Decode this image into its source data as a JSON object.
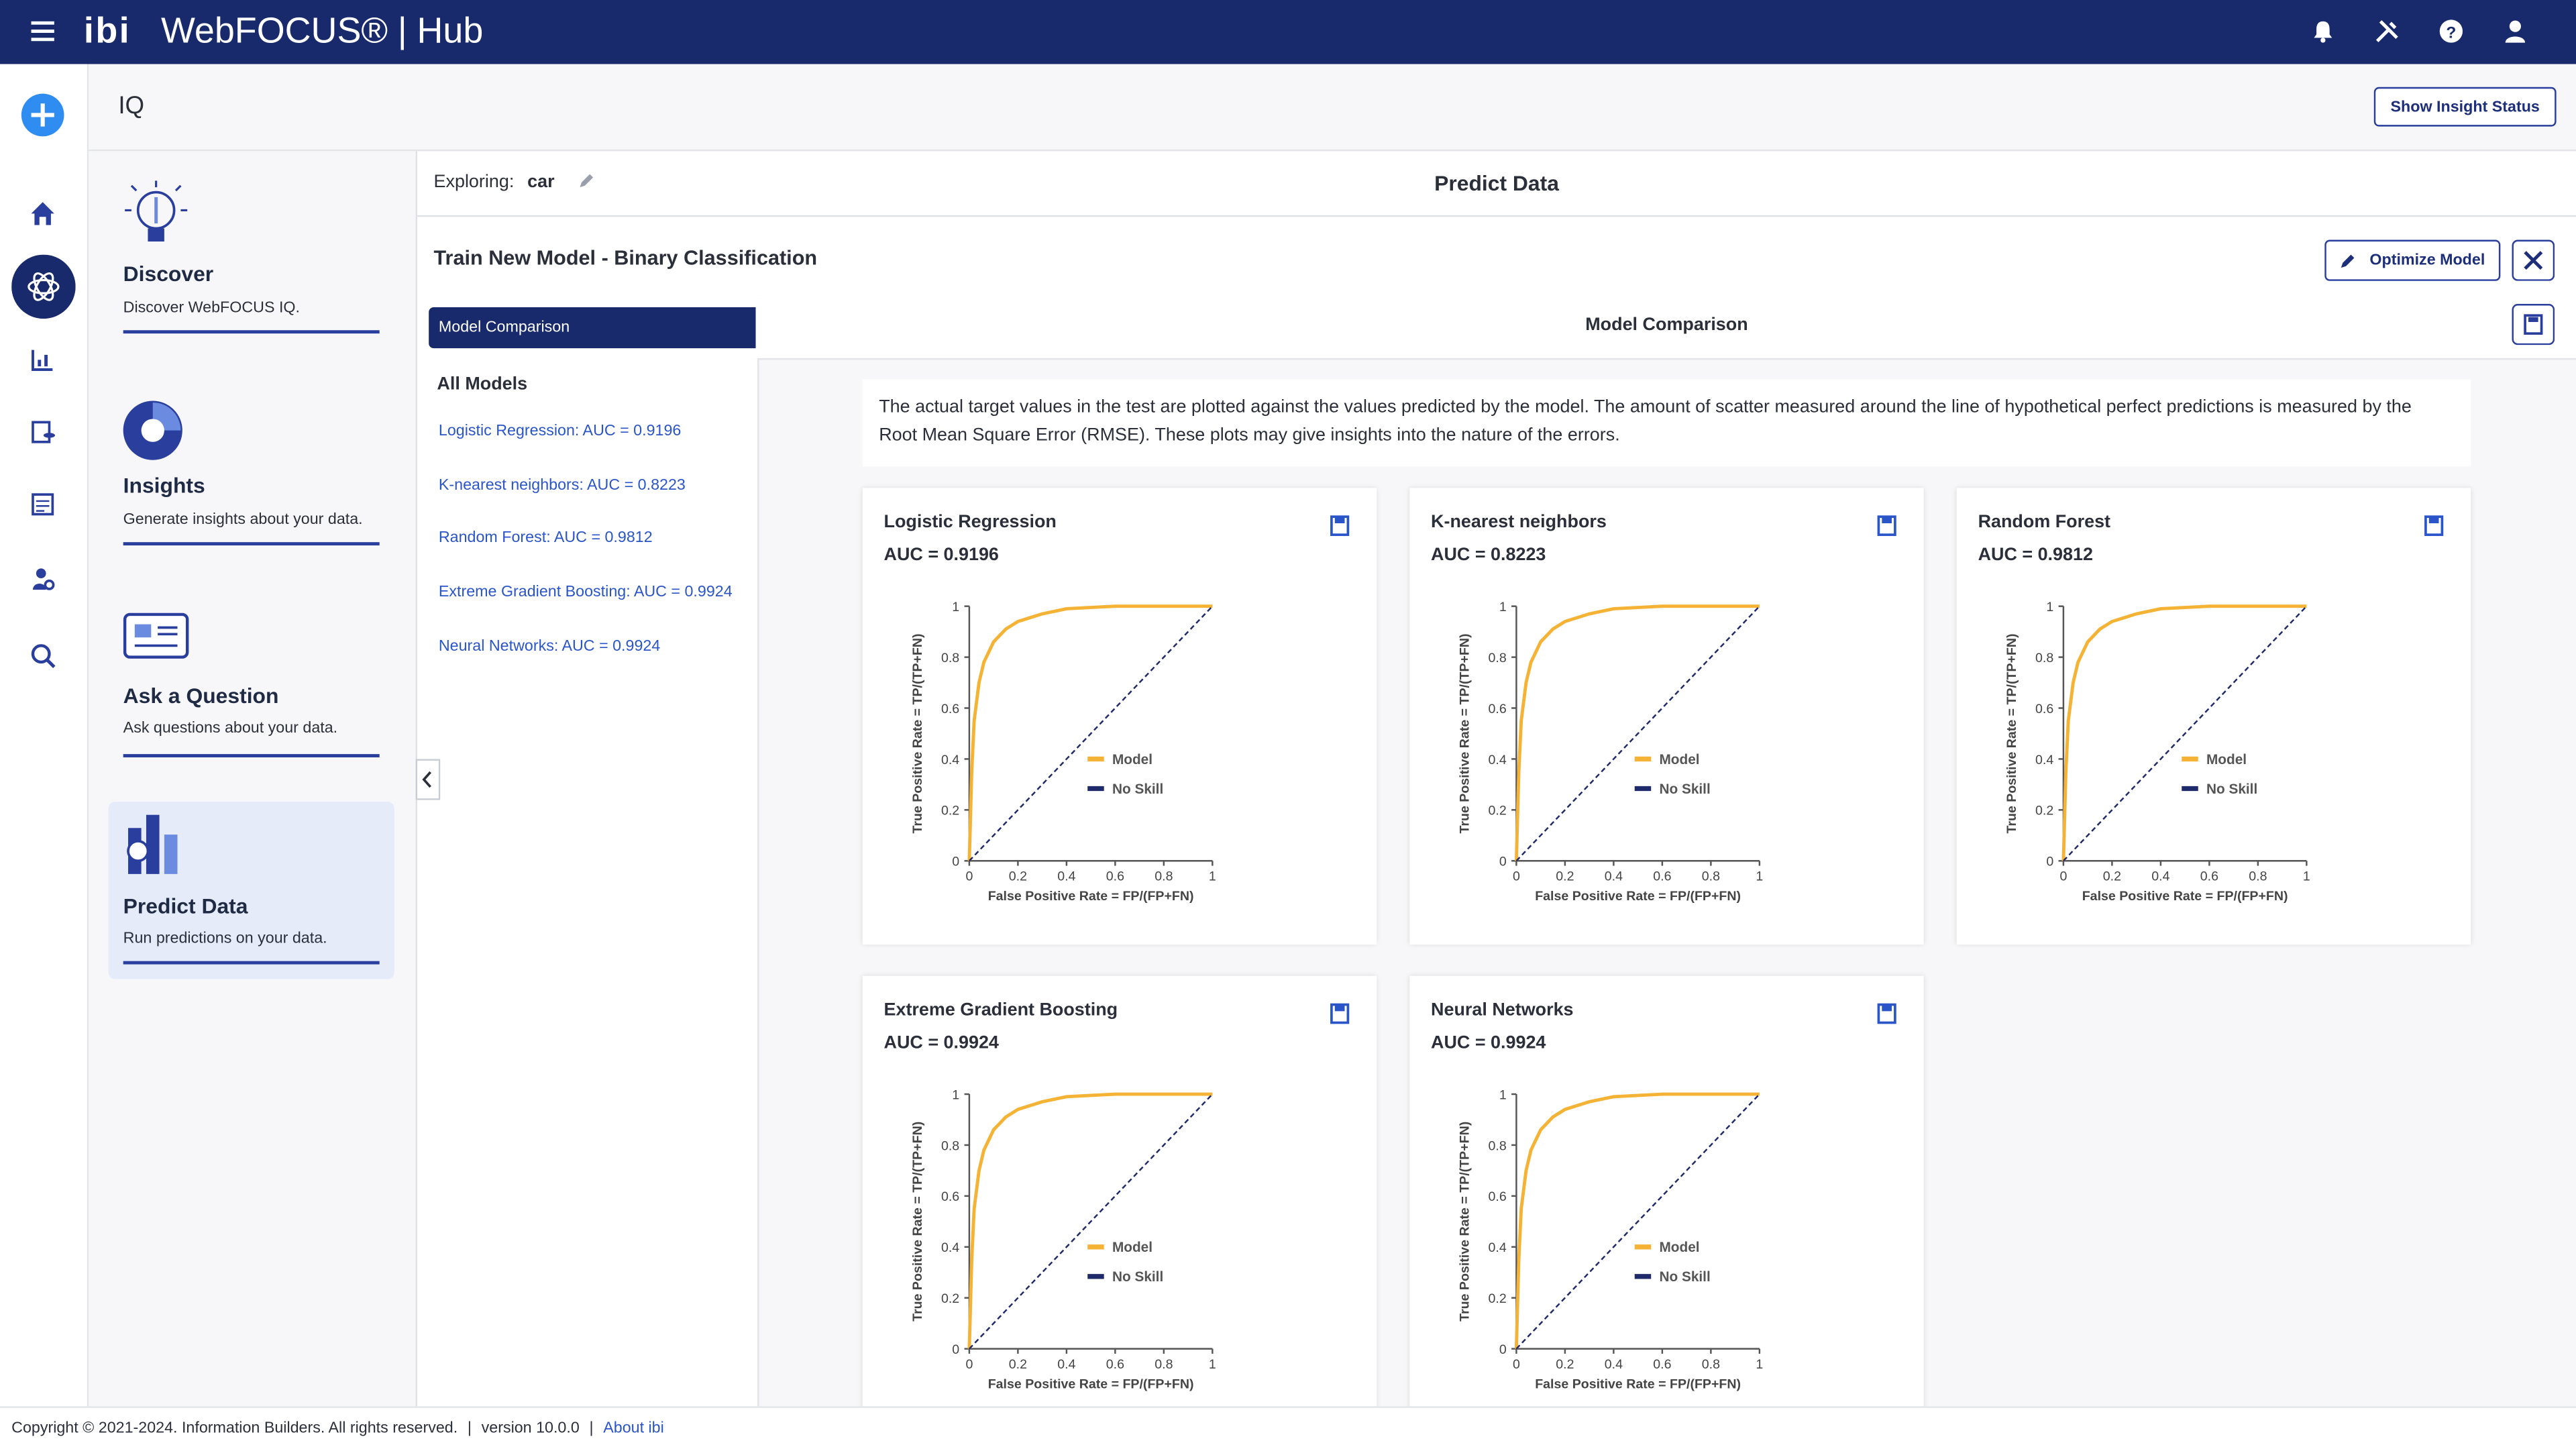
{
  "header": {
    "brand": "ibi",
    "product": "WebFOCUS®",
    "separator": "|",
    "app": "Hub"
  },
  "page_title": "IQ",
  "show_insight_status": "Show Insight Status",
  "nav": [
    {
      "title": "Discover",
      "description": "Discover WebFOCUS IQ."
    },
    {
      "title": "Insights",
      "description": "Generate insights about your data."
    },
    {
      "title": "Ask a Question",
      "description": "Ask questions about your data."
    },
    {
      "title": "Predict Data",
      "description": "Run predictions on your data."
    }
  ],
  "exploring": {
    "label": "Exploring:",
    "value": "car"
  },
  "section_title": "Predict Data",
  "train_title": "Train New Model - Binary Classification",
  "optimize": "Optimize Model",
  "tab": "Model Comparison",
  "all_models": "All Models",
  "models": [
    "Logistic Regression: AUC = 0.9196",
    "K-nearest neighbors: AUC = 0.8223",
    "Random Forest: AUC = 0.9812",
    "Extreme Gradient Boosting: AUC = 0.9924",
    "Neural Networks: AUC = 0.9924"
  ],
  "panel_title": "Model Comparison",
  "description": "The actual target values in the test are plotted against the values predicted by the model. The amount of scatter measured around the line of hypothetical perfect predictions is measured by the Root Mean Square Error (RMSE). These plots may give insights into the nature of the errors.",
  "footer": {
    "copyright": "Copyright © 2021-2024. Information Builders. All rights reserved.",
    "version": "version 10.0.0",
    "about": "About ibi"
  },
  "chart_data": [
    {
      "type": "line",
      "title": "Logistic Regression",
      "subtitle": "AUC = 0.9196",
      "x_label": "False Positive Rate = FP/(FP+FN)",
      "y_label": "True Positive Rate = TP/(TP+FN)",
      "x": [
        0,
        0.01,
        0.02,
        0.04,
        0.06,
        0.1,
        0.15,
        0.2,
        0.3,
        0.4,
        0.6,
        1
      ],
      "series": [
        {
          "name": "Model",
          "color": "#f5b335",
          "line_style": "solid",
          "values": [
            0,
            0.35,
            0.55,
            0.7,
            0.78,
            0.86,
            0.91,
            0.94,
            0.97,
            0.99,
            1,
            1
          ]
        },
        {
          "name": "No Skill",
          "color": "#1f2a6b",
          "line_style": "dashed",
          "values": [
            0,
            0.01,
            0.02,
            0.04,
            0.06,
            0.1,
            0.15,
            0.2,
            0.3,
            0.4,
            0.6,
            1
          ]
        }
      ],
      "xlim": [
        0,
        1
      ],
      "ylim": [
        0,
        1
      ],
      "xticks": [
        0,
        0.2,
        0.4,
        0.6,
        0.8,
        1
      ],
      "yticks": [
        0,
        0.2,
        0.4,
        0.6,
        0.8,
        1
      ],
      "legend": "right"
    },
    {
      "type": "line",
      "title": "K-nearest neighbors",
      "subtitle": "AUC = 0.8223",
      "x_label": "False Positive Rate = FP/(FP+FN)",
      "y_label": "True Positive Rate = TP/(TP+FN)",
      "x": [
        0,
        0.01,
        0.02,
        0.04,
        0.06,
        0.1,
        0.15,
        0.2,
        0.3,
        0.4,
        0.6,
        1
      ],
      "series": [
        {
          "name": "Model",
          "color": "#f5b335",
          "line_style": "solid",
          "values": [
            0,
            0.35,
            0.55,
            0.7,
            0.78,
            0.86,
            0.91,
            0.94,
            0.97,
            0.99,
            1,
            1
          ]
        },
        {
          "name": "No Skill",
          "color": "#1f2a6b",
          "line_style": "dashed",
          "values": [
            0,
            0.01,
            0.02,
            0.04,
            0.06,
            0.1,
            0.15,
            0.2,
            0.3,
            0.4,
            0.6,
            1
          ]
        }
      ],
      "xlim": [
        0,
        1
      ],
      "ylim": [
        0,
        1
      ],
      "xticks": [
        0,
        0.2,
        0.4,
        0.6,
        0.8,
        1
      ],
      "yticks": [
        0,
        0.2,
        0.4,
        0.6,
        0.8,
        1
      ],
      "legend": "right"
    },
    {
      "type": "line",
      "title": "Random Forest",
      "subtitle": "AUC = 0.9812",
      "x_label": "False Positive Rate = FP/(FP+FN)",
      "y_label": "True Positive Rate = TP/(TP+FN)",
      "x": [
        0,
        0.01,
        0.02,
        0.04,
        0.06,
        0.1,
        0.15,
        0.2,
        0.3,
        0.4,
        0.6,
        1
      ],
      "series": [
        {
          "name": "Model",
          "color": "#f5b335",
          "line_style": "solid",
          "values": [
            0,
            0.35,
            0.55,
            0.7,
            0.78,
            0.86,
            0.91,
            0.94,
            0.97,
            0.99,
            1,
            1
          ]
        },
        {
          "name": "No Skill",
          "color": "#1f2a6b",
          "line_style": "dashed",
          "values": [
            0,
            0.01,
            0.02,
            0.04,
            0.06,
            0.1,
            0.15,
            0.2,
            0.3,
            0.4,
            0.6,
            1
          ]
        }
      ],
      "xlim": [
        0,
        1
      ],
      "ylim": [
        0,
        1
      ],
      "xticks": [
        0,
        0.2,
        0.4,
        0.6,
        0.8,
        1
      ],
      "yticks": [
        0,
        0.2,
        0.4,
        0.6,
        0.8,
        1
      ],
      "legend": "right"
    },
    {
      "type": "line",
      "title": "Extreme Gradient Boosting",
      "subtitle": "AUC = 0.9924",
      "x_label": "False Positive Rate = FP/(FP+FN)",
      "y_label": "True Positive Rate = TP/(TP+FN)",
      "x": [
        0,
        0.01,
        0.02,
        0.04,
        0.06,
        0.1,
        0.15,
        0.2,
        0.3,
        0.4,
        0.6,
        1
      ],
      "series": [
        {
          "name": "Model",
          "color": "#f5b335",
          "line_style": "solid",
          "values": [
            0,
            0.35,
            0.55,
            0.7,
            0.78,
            0.86,
            0.91,
            0.94,
            0.97,
            0.99,
            1,
            1
          ]
        },
        {
          "name": "No Skill",
          "color": "#1f2a6b",
          "line_style": "dashed",
          "values": [
            0,
            0.01,
            0.02,
            0.04,
            0.06,
            0.1,
            0.15,
            0.2,
            0.3,
            0.4,
            0.6,
            1
          ]
        }
      ],
      "xlim": [
        0,
        1
      ],
      "ylim": [
        0,
        1
      ],
      "xticks": [
        0,
        0.2,
        0.4,
        0.6,
        0.8,
        1
      ],
      "yticks": [
        0,
        0.2,
        0.4,
        0.6,
        0.8,
        1
      ],
      "legend": "right"
    },
    {
      "type": "line",
      "title": "Neural Networks",
      "subtitle": "AUC = 0.9924",
      "x_label": "False Positive Rate = FP/(FP+FN)",
      "y_label": "True Positive Rate = TP/(TP+FN)",
      "x": [
        0,
        0.01,
        0.02,
        0.04,
        0.06,
        0.1,
        0.15,
        0.2,
        0.3,
        0.4,
        0.6,
        1
      ],
      "series": [
        {
          "name": "Model",
          "color": "#f5b335",
          "line_style": "solid",
          "values": [
            0,
            0.35,
            0.55,
            0.7,
            0.78,
            0.86,
            0.91,
            0.94,
            0.97,
            0.99,
            1,
            1
          ]
        },
        {
          "name": "No Skill",
          "color": "#1f2a6b",
          "line_style": "dashed",
          "values": [
            0,
            0.01,
            0.02,
            0.04,
            0.06,
            0.1,
            0.15,
            0.2,
            0.3,
            0.4,
            0.6,
            1
          ]
        }
      ],
      "xlim": [
        0,
        1
      ],
      "ylim": [
        0,
        1
      ],
      "xticks": [
        0,
        0.2,
        0.4,
        0.6,
        0.8,
        1
      ],
      "yticks": [
        0,
        0.2,
        0.4,
        0.6,
        0.8,
        1
      ],
      "legend": "right"
    }
  ]
}
